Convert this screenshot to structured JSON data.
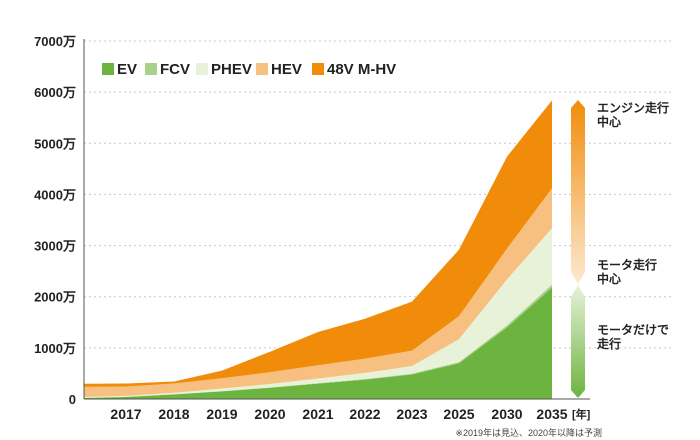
{
  "chart_data": {
    "type": "area",
    "stacked": true,
    "categories": [
      "",
      "2017",
      "2018",
      "2019",
      "2020",
      "2021",
      "2022",
      "2023",
      "2025",
      "2030",
      "2035"
    ],
    "x_unit": "[年]",
    "ylim": [
      0,
      7000
    ],
    "y_ticks": [
      {
        "value": 0,
        "label": "0"
      },
      {
        "value": 1000,
        "label": "1000万"
      },
      {
        "value": 2000,
        "label": "2000万"
      },
      {
        "value": 3000,
        "label": "3000万"
      },
      {
        "value": 4000,
        "label": "4000万"
      },
      {
        "value": 5000,
        "label": "5000万"
      },
      {
        "value": 6000,
        "label": "6000万"
      },
      {
        "value": 7000,
        "label": "7000万"
      }
    ],
    "grid": true,
    "legend_position": "top-left",
    "series": [
      {
        "name": "EV",
        "color": "#6db33f",
        "values": [
          20,
          40,
          90,
          150,
          220,
          300,
          380,
          480,
          700,
          1400,
          2180
        ]
      },
      {
        "name": "FCV",
        "color": "#a8d18a",
        "values": [
          3,
          3,
          3,
          5,
          5,
          10,
          10,
          15,
          20,
          40,
          60
        ]
      },
      {
        "name": "PHEV",
        "color": "#e8f2d8",
        "values": [
          15,
          20,
          30,
          50,
          70,
          90,
          120,
          150,
          450,
          900,
          1100
        ]
      },
      {
        "name": "HEV",
        "color": "#f7bf80",
        "values": [
          200,
          180,
          180,
          200,
          230,
          260,
          280,
          300,
          450,
          600,
          780
        ]
      },
      {
        "name": "48V M-HV",
        "color": "#f08c0a",
        "values": [
          60,
          60,
          40,
          150,
          400,
          650,
          780,
          960,
          1300,
          1800,
          1720
        ]
      }
    ],
    "band_labels": [
      {
        "text": [
          "エンジン走行",
          "中心"
        ],
        "gradient": [
          "#f08c0a",
          "#fde9d2"
        ]
      },
      {
        "text": [
          "モータ走行",
          "中心"
        ]
      },
      {
        "text": [
          "モータだけで",
          "走行"
        ],
        "gradient": [
          "#e6f2d8",
          "#6db33f"
        ]
      }
    ],
    "note": "※2019年は見込、2020年以降は予測"
  }
}
